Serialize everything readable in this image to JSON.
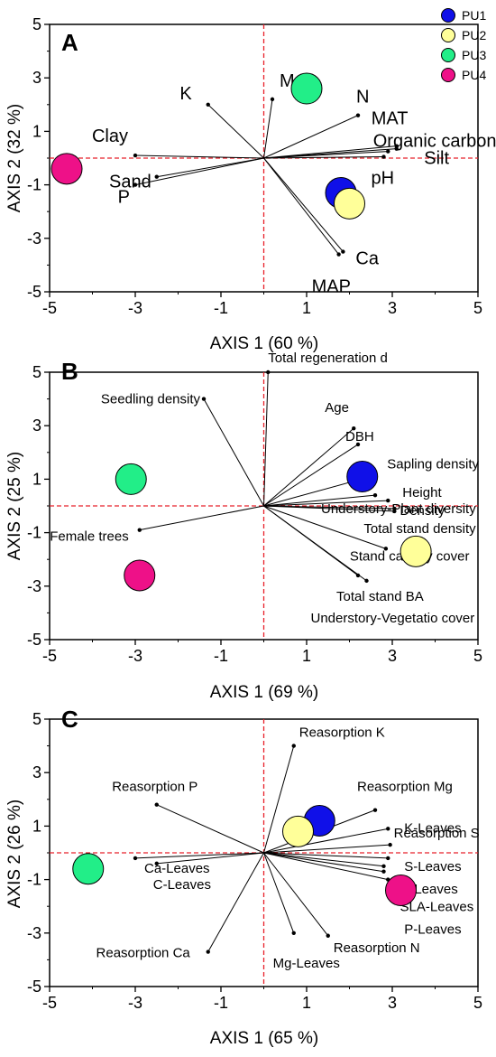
{
  "legend": [
    {
      "name": "PU1",
      "color": "#1010e8"
    },
    {
      "name": "PU2",
      "color": "#ffff99"
    },
    {
      "name": "PU3",
      "color": "#22ee88"
    },
    {
      "name": "PU4",
      "color": "#ee1188"
    }
  ],
  "chart_data": [
    {
      "type": "scatter",
      "panel": "A",
      "xlabel": "AXIS 1 (60 %)",
      "ylabel": "AXIS 2 (32 %)",
      "xlim": [
        -5,
        5
      ],
      "ylim": [
        -5,
        5
      ],
      "xticks": [
        "-5",
        "-3",
        "-1",
        "1",
        "3",
        "5"
      ],
      "yticks": [
        "-5",
        "-3",
        "-1",
        "1",
        "3",
        "5"
      ],
      "grid": false,
      "reference_lines": "dashed red at x=0 and y=0",
      "points": [
        {
          "name": "PU1",
          "x": 1.8,
          "y": -1.3
        },
        {
          "name": "PU2",
          "x": 2.0,
          "y": -1.7
        },
        {
          "name": "PU3",
          "x": 1.0,
          "y": 2.6
        },
        {
          "name": "PU4",
          "x": -4.6,
          "y": -0.4
        }
      ],
      "vectors": [
        {
          "label": "K",
          "x": -1.3,
          "y": 2.0
        },
        {
          "label": "Mg",
          "x": 0.2,
          "y": 2.2
        },
        {
          "label": "N",
          "x": 2.2,
          "y": 1.6
        },
        {
          "label": "MAT",
          "x": 3.1,
          "y": 0.45
        },
        {
          "label": "Organic carbon",
          "x": 3.1,
          "y": 0.35
        },
        {
          "label": "Silt",
          "x": 2.9,
          "y": 0.25
        },
        {
          "label": "pH",
          "x": 2.8,
          "y": 0.05
        },
        {
          "label": "Ca",
          "x": 1.85,
          "y": -3.5
        },
        {
          "label": "MAP",
          "x": 1.75,
          "y": -3.6
        },
        {
          "label": "Clay",
          "x": -3.0,
          "y": 0.1
        },
        {
          "label": "Sand",
          "x": -2.5,
          "y": -0.7
        },
        {
          "label": "P",
          "x": -3.0,
          "y": -1.0
        }
      ]
    },
    {
      "type": "scatter",
      "panel": "B",
      "xlabel": "AXIS 1 (69 %)",
      "ylabel": "AXIS 2 (25 %)",
      "xlim": [
        -5,
        5
      ],
      "ylim": [
        -5,
        5
      ],
      "xticks": [
        "-5",
        "-3",
        "-1",
        "1",
        "3",
        "5"
      ],
      "yticks": [
        "-5",
        "-3",
        "-1",
        "1",
        "3",
        "5"
      ],
      "grid": false,
      "reference_lines": "dashed red at x=0 and y=0",
      "points": [
        {
          "name": "PU1",
          "x": 2.3,
          "y": 1.1
        },
        {
          "name": "PU2",
          "x": 3.55,
          "y": -1.7
        },
        {
          "name": "PU3",
          "x": -3.1,
          "y": 1.0
        },
        {
          "name": "PU4",
          "x": -2.9,
          "y": -2.6
        }
      ],
      "vectors": [
        {
          "label": "Total regeneration d",
          "x": 0.1,
          "y": 5.0
        },
        {
          "label": "Seedling density",
          "x": -1.4,
          "y": 4.0
        },
        {
          "label": "Age",
          "x": 2.1,
          "y": 2.9
        },
        {
          "label": "DBH",
          "x": 2.2,
          "y": 2.3
        },
        {
          "label": "Sapling density",
          "x": 2.5,
          "y": 1.1
        },
        {
          "label": "Understory-Plant diversity",
          "x": 2.6,
          "y": 0.4
        },
        {
          "label": "Height",
          "x": 2.9,
          "y": 0.2
        },
        {
          "label": "Density",
          "x": 3.05,
          "y": -0.1
        },
        {
          "label": "Total stand density",
          "x": 3.05,
          "y": -0.2
        },
        {
          "label": "Stand canopy cover",
          "x": 2.85,
          "y": -1.6
        },
        {
          "label": "Total stand BA",
          "x": 2.2,
          "y": -2.6
        },
        {
          "label": "Understory-Vegetatio cover",
          "x": 2.4,
          "y": -2.8
        },
        {
          "label": "Female trees",
          "x": -2.9,
          "y": -0.9
        }
      ]
    },
    {
      "type": "scatter",
      "panel": "C",
      "xlabel": "AXIS 1 (65 %)",
      "ylabel": "AXIS 2 (26 %)",
      "xlim": [
        -5,
        5
      ],
      "ylim": [
        -5,
        5
      ],
      "xticks": [
        "-5",
        "-3",
        "-1",
        "1",
        "3",
        "5"
      ],
      "yticks": [
        "-5",
        "-3",
        "-1",
        "1",
        "3",
        "5"
      ],
      "grid": false,
      "reference_lines": "dashed red at x=0 and y=0",
      "points": [
        {
          "name": "PU1",
          "x": 1.3,
          "y": 1.2
        },
        {
          "name": "PU2",
          "x": 0.8,
          "y": 0.8
        },
        {
          "name": "PU3",
          "x": -4.1,
          "y": -0.6
        },
        {
          "name": "PU4",
          "x": 3.2,
          "y": -1.4
        }
      ],
      "vectors": [
        {
          "label": "Reasorption K",
          "x": 0.7,
          "y": 4.0
        },
        {
          "label": "Reasorption Mg",
          "x": 2.6,
          "y": 1.6
        },
        {
          "label": "K-Leaves",
          "x": 2.9,
          "y": 0.9
        },
        {
          "label": "Reasorption S",
          "x": 2.95,
          "y": 0.3
        },
        {
          "label": "S-Leaves",
          "x": 2.9,
          "y": -0.2
        },
        {
          "label": "N-Leaves",
          "x": 2.8,
          "y": -0.5
        },
        {
          "label": "SLA-Leaves",
          "x": 2.8,
          "y": -0.7
        },
        {
          "label": "P-Leaves",
          "x": 2.9,
          "y": -1.0
        },
        {
          "label": "Reasorption P",
          "x": -2.5,
          "y": 1.8
        },
        {
          "label": "Ca-Leaves",
          "x": -3.0,
          "y": -0.2
        },
        {
          "label": "C-Leaves",
          "x": -2.5,
          "y": -0.4
        },
        {
          "label": "Reasorption Ca",
          "x": -1.3,
          "y": -3.7
        },
        {
          "label": "Mg-Leaves",
          "x": 0.7,
          "y": -3.0
        },
        {
          "label": "Reasorption N",
          "x": 1.5,
          "y": -3.1
        }
      ]
    }
  ]
}
